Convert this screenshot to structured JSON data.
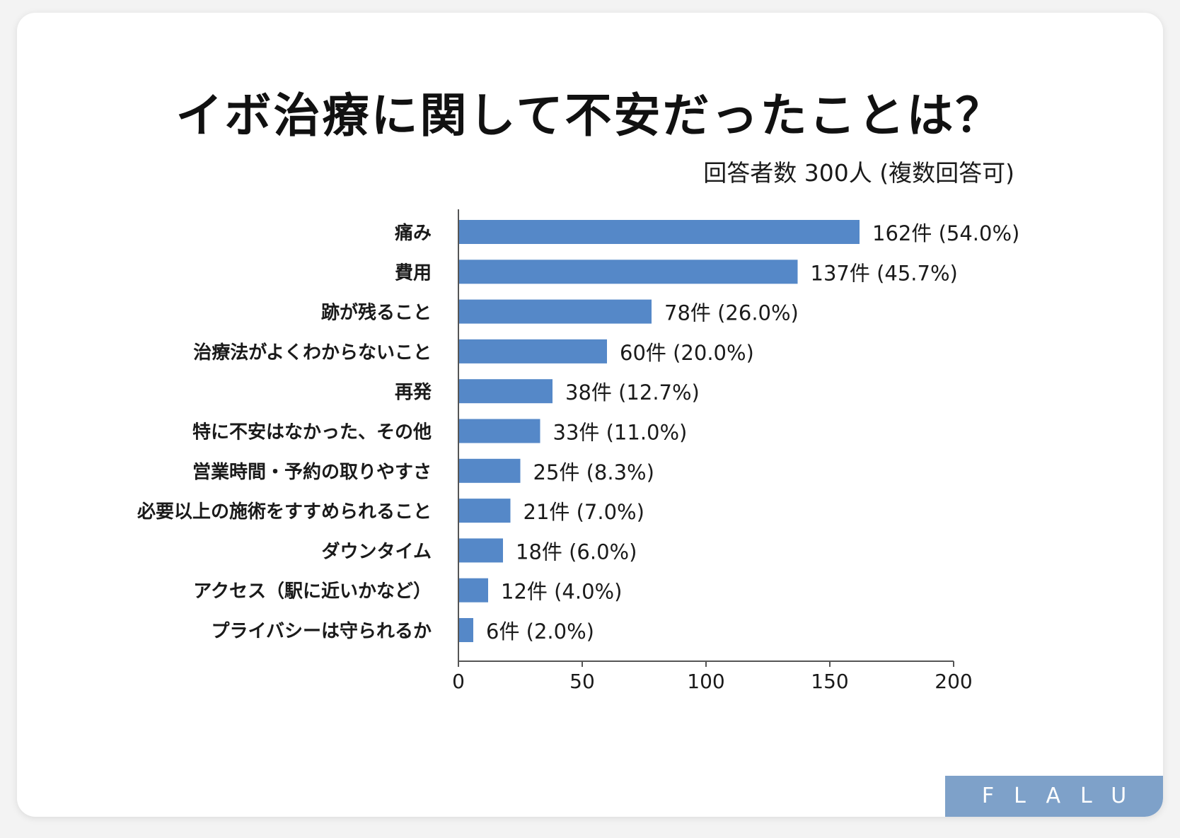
{
  "header": {
    "title": "イボ治療に関して不安だったことは？",
    "subtitle": "回答者数 300人 (複数回答可)"
  },
  "brand": {
    "logo_text": "FLALU",
    "background_color": "#7ea1c9"
  },
  "chart_data": {
    "type": "bar",
    "orientation": "horizontal",
    "categories": [
      "痛み",
      "費用",
      "跡が残ること",
      "治療法がよくわからないこと",
      "再発",
      "特に不安はなかった、その他",
      "営業時間・予約の取りやすさ",
      "必要以上の施術をすすめられること",
      "ダウンタイム",
      "アクセス（駅に近いかなど）",
      "プライバシーは守られるか"
    ],
    "values": [
      162,
      137,
      78,
      60,
      38,
      33,
      25,
      21,
      18,
      12,
      6
    ],
    "data_labels": [
      "162件 (54.0%)",
      "137件 (45.7%)",
      "78件 (26.0%)",
      "60件 (20.0%)",
      "38件 (12.7%)",
      "33件 (11.0%)",
      "25件 (8.3%)",
      "21件 (7.0%)",
      "18件 (6.0%)",
      "12件 (4.0%)",
      "6件 (2.0%)"
    ],
    "xlim": [
      0,
      200
    ],
    "xticks": [
      0,
      50,
      100,
      150,
      200
    ],
    "bar_color": "#5588c8",
    "grid": false
  }
}
